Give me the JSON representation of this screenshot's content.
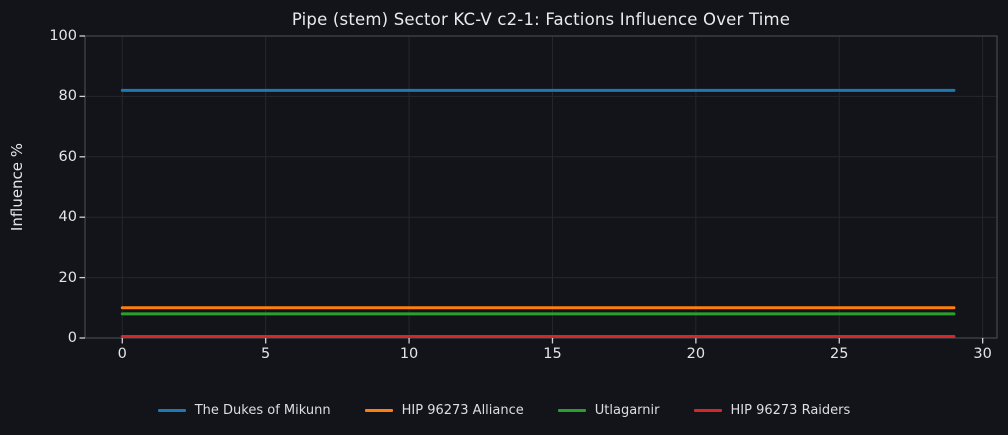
{
  "chart_data": {
    "type": "line",
    "title": "Pipe (stem) Sector KC-V c2-1: Factions Influence Over Time",
    "xlabel": "",
    "ylabel": "Influence %",
    "xlim": [
      -1.3,
      30.5
    ],
    "ylim": [
      0,
      100
    ],
    "xticks": [
      0,
      5,
      10,
      15,
      20,
      25,
      30
    ],
    "yticks": [
      0,
      20,
      40,
      60,
      80,
      100
    ],
    "grid": true,
    "legend_position": "bottom-center",
    "x": [
      0,
      1,
      2,
      3,
      4,
      5,
      6,
      7,
      8,
      9,
      10,
      11,
      12,
      13,
      14,
      15,
      16,
      17,
      18,
      19,
      20,
      21,
      22,
      23,
      24,
      25,
      26,
      27,
      28,
      29
    ],
    "series": [
      {
        "name": "The Dukes of Mikunn",
        "color": "#1f77b4",
        "values": [
          82,
          82,
          82,
          82,
          82,
          82,
          82,
          82,
          82,
          82,
          82,
          82,
          82,
          82,
          82,
          82,
          82,
          82,
          82,
          82,
          82,
          82,
          82,
          82,
          82,
          82,
          82,
          82,
          82,
          82
        ]
      },
      {
        "name": "HIP 96273 Alliance",
        "color": "#ff7f0e",
        "values": [
          10,
          10,
          10,
          10,
          10,
          10,
          10,
          10,
          10,
          10,
          10,
          10,
          10,
          10,
          10,
          10,
          10,
          10,
          10,
          10,
          10,
          10,
          10,
          10,
          10,
          10,
          10,
          10,
          10,
          10
        ]
      },
      {
        "name": "Utlagarnir",
        "color": "#2ca02c",
        "values": [
          8,
          8,
          8,
          8,
          8,
          8,
          8,
          8,
          8,
          8,
          8,
          8,
          8,
          8,
          8,
          8,
          8,
          8,
          8,
          8,
          8,
          8,
          8,
          8,
          8,
          8,
          8,
          8,
          8,
          8
        ]
      },
      {
        "name": "HIP 96273 Raiders",
        "color": "#d62728",
        "values": [
          0.5,
          0.5,
          0.5,
          0.5,
          0.5,
          0.5,
          0.5,
          0.5,
          0.5,
          0.5,
          0.5,
          0.5,
          0.5,
          0.5,
          0.5,
          0.5,
          0.5,
          0.5,
          0.5,
          0.5,
          0.5,
          0.5,
          0.5,
          0.5,
          0.5,
          0.5,
          0.5,
          0.5,
          0.5,
          0.5
        ]
      }
    ]
  },
  "colors": {
    "background": "#121419",
    "grid": "#25272d",
    "spine": "#41444b",
    "tick_mark": "#cfd1d5",
    "tick_label": "#e3e5e8",
    "title": "#e9eaec",
    "legend_text": "#dcdee1"
  }
}
